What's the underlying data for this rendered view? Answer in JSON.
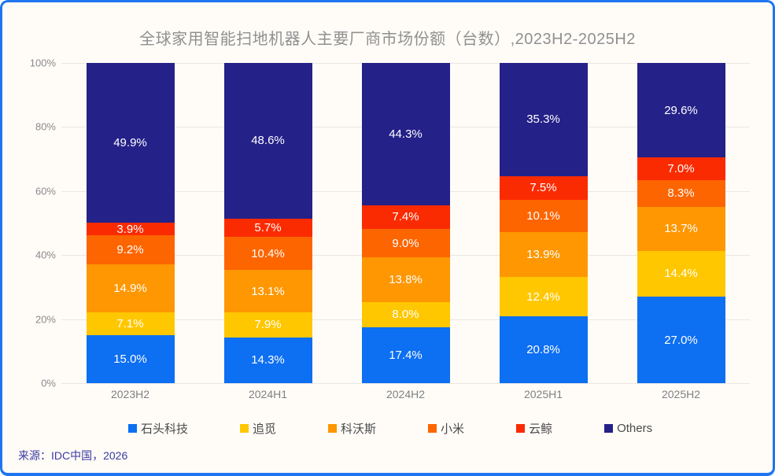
{
  "title": "全球家用智能扫地机器人主要厂商市场份额（台数）,2023H2-2025H2",
  "source": "来源：IDC中国，2026",
  "colors": {
    "frame_border": "#1F75F0",
    "background": "#FFFCF8",
    "gridline": "#EAE7E3",
    "title_text": "#909090",
    "axis_text": "#8A8A8A",
    "legend_text": "#4A4A4A",
    "source_text": "#3A3AA0",
    "bar_label_text": "#FFFFFF"
  },
  "chart_data": {
    "type": "bar",
    "stacked": true,
    "title": "全球家用智能扫地机器人主要厂商市场份额（台数）,2023H2-2025H2",
    "categories": [
      "2023H2",
      "2024H1",
      "2024H2",
      "2025H1",
      "2025H2"
    ],
    "series": [
      {
        "name": "石头科技",
        "color": "#0D6FF2",
        "values": [
          15.0,
          14.3,
          17.4,
          20.8,
          27.0
        ]
      },
      {
        "name": "追觅",
        "color": "#FFC700",
        "values": [
          7.1,
          7.9,
          8.0,
          12.4,
          14.4
        ]
      },
      {
        "name": "科沃斯",
        "color": "#FE9702",
        "values": [
          14.9,
          13.1,
          13.8,
          13.9,
          13.7
        ]
      },
      {
        "name": "小米",
        "color": "#FD6500",
        "values": [
          9.2,
          10.4,
          9.0,
          10.1,
          8.3
        ]
      },
      {
        "name": "云鲸",
        "color": "#FB2B01",
        "values": [
          3.9,
          5.7,
          7.4,
          7.5,
          7.0
        ]
      },
      {
        "name": "Others",
        "color": "#242188",
        "values": [
          49.9,
          48.6,
          44.3,
          35.3,
          29.6
        ]
      }
    ],
    "xlabel": "",
    "ylabel": "",
    "ylim": [
      0,
      100
    ],
    "yticks": [
      "0%",
      "20%",
      "40%",
      "60%",
      "80%",
      "100%"
    ],
    "grid": true,
    "legend_position": "bottom",
    "value_label_format": "{value}%"
  }
}
